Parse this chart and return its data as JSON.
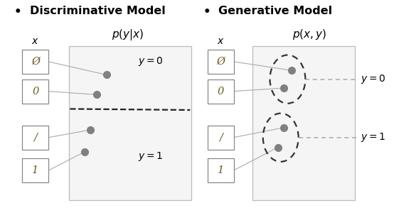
{
  "title_disc": "Discriminative Model",
  "title_gen": "Generative Model",
  "label_disc_formula": "$p(y|x)$",
  "label_gen_formula": "$p(x, y)$",
  "label_x": "$x$",
  "bullet": "•",
  "digit_chars": [
    "Ø",
    "0",
    "/",
    "1"
  ],
  "dot_color": "#808080",
  "line_color": "#aaaaaa",
  "bg_color": "#ffffff",
  "y0_label": "$y = 0$",
  "y1_label": "$y = 1$",
  "panel_box_edge": "#bbbbbb",
  "panel_box_face": "#f5f5f5",
  "digit_box_edge": "#888888",
  "digit_text_color": "#6b5a1e"
}
